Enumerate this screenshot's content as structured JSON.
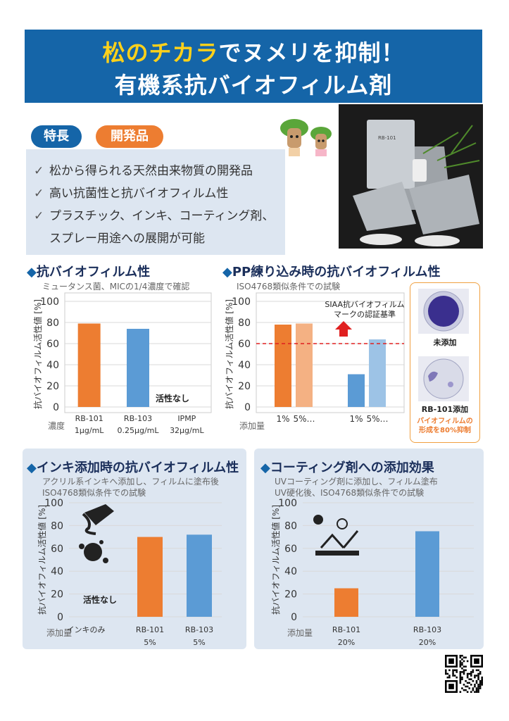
{
  "header": {
    "title_line1_highlight": "松のチカラ",
    "title_line1_rest": "でヌメリを抑制！",
    "title_line2": "有機系抗バイオフィルム剤"
  },
  "features": {
    "badge_label": "特長",
    "badge2_label": "開発品",
    "items": [
      "松から得られる天然由来物質の開発品",
      "高い抗菌性と抗バイオフィルム性",
      "プラスチック、インキ、コーティング剤、",
      "スプレー用途への展開が可能"
    ]
  },
  "photo": {
    "product_label": "RB-101"
  },
  "sections": {
    "s1": {
      "title": "抗バイオフィルム性",
      "subtitle": "ミュータンス菌、MICの1/4濃度で確認"
    },
    "s2": {
      "title": "PP練り込み時の抗バイオフィルム性",
      "subtitle": "ISO4768類似条件での試験"
    },
    "s3": {
      "title": "インキ添加時の抗バイオフィルム性",
      "subtitle1": "アクリル系インキへ添加し、フィルムに塗布後",
      "subtitle2": "ISO4768類似条件での試験"
    },
    "s4": {
      "title": "コーティング剤への添加効果",
      "subtitle1": "UVコーティング剤に添加し、フィルム塗布",
      "subtitle2": "UV硬化後、ISO4768類似条件での試験"
    }
  },
  "petri": {
    "label_control": "未添加",
    "label_rb101": "RB-101添加",
    "note_line1": "バイオフィルムの",
    "note_line2": "形成を80%抑制"
  },
  "chart_data": [
    {
      "type": "bar",
      "ylabel": "抗バイオフィルム活性値 [%]",
      "ylim": [
        0,
        100
      ],
      "yticks": [
        "0",
        "20",
        "40",
        "60",
        "80",
        "100"
      ],
      "row_label": "濃度",
      "categories": [
        {
          "name": "RB-101",
          "sub": "1μg/mL",
          "value": 79,
          "color": "#ed7d31"
        },
        {
          "name": "RB-103",
          "sub": "0.25μg/mL",
          "value": 74,
          "color": "#5b9bd5"
        },
        {
          "name": "IPMP",
          "sub": "32μg/mL",
          "value": 0,
          "color": "#888888"
        }
      ],
      "annotation": "活性なし"
    },
    {
      "type": "bar",
      "ylabel": "抗バイオフィルム活性値 [%]",
      "ylim": [
        0,
        100
      ],
      "yticks": [
        "0",
        "20",
        "40",
        "60",
        "80",
        "100"
      ],
      "row_label": "添加量",
      "bars": [
        {
          "label": "1%",
          "value": 78,
          "color": "#ed7d31"
        },
        {
          "label": "5%…",
          "value": 79,
          "color": "#f4b183"
        },
        {
          "label": "1%",
          "value": 31,
          "color": "#5b9bd5"
        },
        {
          "label": "5%…",
          "value": 64,
          "color": "#9dc3e6"
        }
      ],
      "reference_line": 60,
      "reference_label_1": "SIAA抗バイオフィルム",
      "reference_label_2": "マークの認証基準"
    },
    {
      "type": "bar",
      "ylabel": "抗バイオフィルム活性値 [%]",
      "ylim": [
        0,
        100
      ],
      "yticks": [
        "0",
        "20",
        "40",
        "60",
        "80",
        "100"
      ],
      "row_label": "添加量",
      "categories": [
        {
          "name": "インキのみ",
          "sub": "",
          "value": 0,
          "color": "#888888"
        },
        {
          "name": "RB-101",
          "sub": "5%",
          "value": 70,
          "color": "#ed7d31"
        },
        {
          "name": "RB-103",
          "sub": "5%",
          "value": 72,
          "color": "#5b9bd5"
        }
      ],
      "annotation": "活性なし"
    },
    {
      "type": "bar",
      "ylabel": "抗バイオフィルム活性値 [%]",
      "ylim": [
        0,
        100
      ],
      "yticks": [
        "0",
        "20",
        "40",
        "60",
        "80",
        "100"
      ],
      "row_label": "添加量",
      "categories": [
        {
          "name": "RB-101",
          "sub": "20%",
          "value": 25,
          "color": "#ed7d31"
        },
        {
          "name": "RB-103",
          "sub": "20%",
          "value": 75,
          "color": "#5b9bd5"
        }
      ]
    }
  ],
  "colors": {
    "brand_blue": "#1565a8",
    "accent_orange": "#ed7d31",
    "accent_blue": "#5b9bd5",
    "highlight_yellow": "#ffd11a"
  }
}
